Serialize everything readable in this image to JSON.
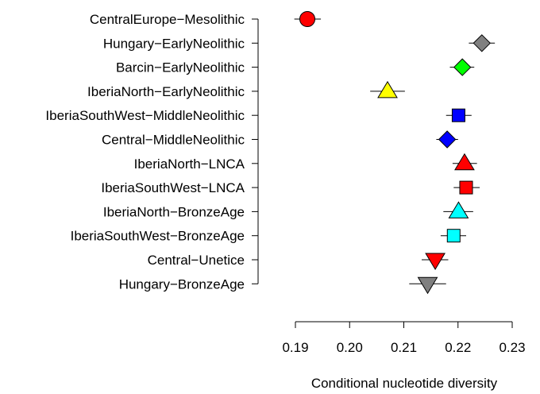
{
  "chart_data": {
    "type": "scatter",
    "title": "",
    "xlabel": "Conditional nucleotide diversity",
    "ylabel": "",
    "xlim": [
      0.19,
      0.23
    ],
    "xticks": [
      "0.19",
      "0.20",
      "0.21",
      "0.22",
      "0.23"
    ],
    "grid": false,
    "points": [
      {
        "label": "CentralEurope−Mesolithic",
        "x": 0.1922,
        "lo": 0.1898,
        "hi": 0.1947,
        "shape": "circle",
        "color": "#ff0000"
      },
      {
        "label": "Hungary−EarlyNeolithic",
        "x": 0.2244,
        "lo": 0.222,
        "hi": 0.2268,
        "shape": "diamond",
        "color": "#808080"
      },
      {
        "label": "Barcin−EarlyNeolithic",
        "x": 0.2208,
        "lo": 0.2185,
        "hi": 0.223,
        "shape": "diamond",
        "color": "#00ff00"
      },
      {
        "label": "IberiaNorth−EarlyNeolithic",
        "x": 0.207,
        "lo": 0.2038,
        "hi": 0.2102,
        "shape": "triangle-up",
        "color": "#ffff00"
      },
      {
        "label": "IberiaSouthWest−MiddleNeolithic",
        "x": 0.2201,
        "lo": 0.2178,
        "hi": 0.2225,
        "shape": "square",
        "color": "#0000ff"
      },
      {
        "label": "Central−MiddleNeolithic",
        "x": 0.218,
        "lo": 0.216,
        "hi": 0.22,
        "shape": "diamond",
        "color": "#0000ff"
      },
      {
        "label": "IberiaNorth−LNCA",
        "x": 0.2212,
        "lo": 0.219,
        "hi": 0.2235,
        "shape": "triangle-up",
        "color": "#ff0000"
      },
      {
        "label": "IberiaSouthWest−LNCA",
        "x": 0.2215,
        "lo": 0.2192,
        "hi": 0.224,
        "shape": "square",
        "color": "#ff0000"
      },
      {
        "label": "IberiaNorth−BronzeAge",
        "x": 0.2201,
        "lo": 0.2173,
        "hi": 0.2228,
        "shape": "triangle-up",
        "color": "#00ffff"
      },
      {
        "label": "IberiaSouthWest−BronzeAge",
        "x": 0.2192,
        "lo": 0.2168,
        "hi": 0.2215,
        "shape": "square",
        "color": "#00ffff"
      },
      {
        "label": "Central−Unetice",
        "x": 0.2158,
        "lo": 0.2133,
        "hi": 0.2182,
        "shape": "triangle-down",
        "color": "#ff0000"
      },
      {
        "label": "Hungary−BronzeAge",
        "x": 0.2144,
        "lo": 0.211,
        "hi": 0.2178,
        "shape": "triangle-down",
        "color": "#808080"
      }
    ]
  }
}
